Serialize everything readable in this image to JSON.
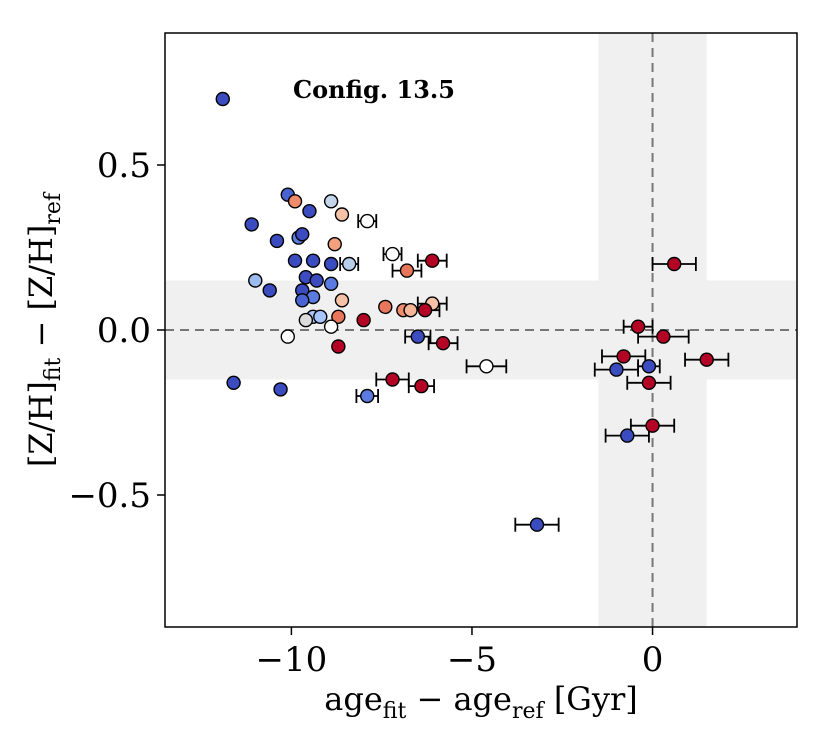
{
  "chart_data": {
    "type": "scatter",
    "annotation": "Config. 13.5",
    "xlabel": {
      "main": "age",
      "sub_fit": "fit",
      "minus": " − age",
      "sub_ref": "ref",
      "unit": " [Gyr]"
    },
    "ylabel": {
      "main": "[Z/H]",
      "sub_fit": "fit",
      "minus": " − [Z/H]",
      "sub_ref": "ref"
    },
    "xlim": [
      -13.5,
      4.0
    ],
    "ylim": [
      -0.9,
      0.9
    ],
    "xticks": [
      {
        "v": -10,
        "label": "−10"
      },
      {
        "v": -5,
        "label": "−5"
      },
      {
        "v": 0,
        "label": "0"
      }
    ],
    "yticks": [
      {
        "v": 0.5,
        "label": "0.5"
      },
      {
        "v": 0.0,
        "label": "0.0"
      },
      {
        "v": -0.5,
        "label": "−0.5"
      }
    ],
    "reference_lines": {
      "x": 0,
      "y": 0
    },
    "shaded_bands": {
      "x": [
        -1.5,
        1.5
      ],
      "y": [
        -0.15,
        0.15
      ]
    },
    "grid": false,
    "colors": {
      "band": "#f0f0f0",
      "refline": "#777777",
      "edge": "#000000"
    },
    "points": [
      {
        "x": -11.9,
        "y": 0.7,
        "c": "#3b4cc0"
      },
      {
        "x": -11.1,
        "y": 0.32,
        "c": "#3b4cc0"
      },
      {
        "x": -10.1,
        "y": 0.41,
        "c": "#4a63d3"
      },
      {
        "x": -9.9,
        "y": 0.39,
        "c": "#f08b6b"
      },
      {
        "x": -10.4,
        "y": 0.27,
        "c": "#3b4cc0"
      },
      {
        "x": -9.5,
        "y": 0.36,
        "c": "#3b4cc0"
      },
      {
        "x": -8.9,
        "y": 0.39,
        "c": "#c5d5ec"
      },
      {
        "x": -8.6,
        "y": 0.35,
        "c": "#f5c2a8"
      },
      {
        "x": -7.9,
        "y": 0.33,
        "c": "#ffffff"
      },
      {
        "x": -9.8,
        "y": 0.28,
        "c": "#5b7be0"
      },
      {
        "x": -9.7,
        "y": 0.29,
        "c": "#3b4cc0"
      },
      {
        "x": -8.8,
        "y": 0.26,
        "c": "#f2a07e"
      },
      {
        "x": -7.2,
        "y": 0.23,
        "c": "#ffffff"
      },
      {
        "x": -6.1,
        "y": 0.21,
        "c": "#b40426"
      },
      {
        "x": -9.9,
        "y": 0.21,
        "c": "#3b4cc0"
      },
      {
        "x": -9.4,
        "y": 0.21,
        "c": "#3b4cc0"
      },
      {
        "x": -8.9,
        "y": 0.2,
        "c": "#3b4cc0"
      },
      {
        "x": -8.4,
        "y": 0.2,
        "c": "#b8cde9"
      },
      {
        "x": -6.8,
        "y": 0.18,
        "c": "#e8765b"
      },
      {
        "x": -11.0,
        "y": 0.15,
        "c": "#9cbcf0"
      },
      {
        "x": -9.6,
        "y": 0.16,
        "c": "#3b4cc0"
      },
      {
        "x": -9.3,
        "y": 0.15,
        "c": "#3b4cc0"
      },
      {
        "x": -8.9,
        "y": 0.14,
        "c": "#5b7be0"
      },
      {
        "x": -10.6,
        "y": 0.12,
        "c": "#3b4cc0"
      },
      {
        "x": -9.7,
        "y": 0.12,
        "c": "#3b4cc0"
      },
      {
        "x": -9.4,
        "y": 0.1,
        "c": "#5b7be0"
      },
      {
        "x": -8.6,
        "y": 0.09,
        "c": "#f5c2a8"
      },
      {
        "x": -9.7,
        "y": 0.09,
        "c": "#4a63d3"
      },
      {
        "x": -7.4,
        "y": 0.07,
        "c": "#e8765b"
      },
      {
        "x": -6.9,
        "y": 0.06,
        "c": "#f08b6b"
      },
      {
        "x": -6.7,
        "y": 0.06,
        "c": "#f5b596"
      },
      {
        "x": -6.1,
        "y": 0.08,
        "c": "#f5c2a8"
      },
      {
        "x": -6.3,
        "y": 0.06,
        "c": "#b40426"
      },
      {
        "x": -8.7,
        "y": 0.04,
        "c": "#e8765b"
      },
      {
        "x": -8.0,
        "y": 0.03,
        "c": "#b40426"
      },
      {
        "x": -9.4,
        "y": 0.04,
        "c": "#a7c5fe"
      },
      {
        "x": -9.2,
        "y": 0.04,
        "c": "#a7c5fe"
      },
      {
        "x": -9.6,
        "y": 0.03,
        "c": "#dcdcdc"
      },
      {
        "x": -8.9,
        "y": 0.01,
        "c": "#ffffff"
      },
      {
        "x": -10.1,
        "y": -0.02,
        "c": "#ffffff"
      },
      {
        "x": -6.5,
        "y": -0.02,
        "c": "#3b4cc0"
      },
      {
        "x": -5.8,
        "y": -0.04,
        "c": "#b40426"
      },
      {
        "x": -8.7,
        "y": -0.05,
        "c": "#b40426"
      },
      {
        "x": -4.6,
        "y": -0.11,
        "c": "#ffffff"
      },
      {
        "x": -7.2,
        "y": -0.15,
        "c": "#b40426"
      },
      {
        "x": -6.4,
        "y": -0.17,
        "c": "#b40426"
      },
      {
        "x": -11.6,
        "y": -0.16,
        "c": "#3b4cc0"
      },
      {
        "x": -10.3,
        "y": -0.18,
        "c": "#3b4cc0"
      },
      {
        "x": -7.9,
        "y": -0.2,
        "c": "#5b7be0"
      },
      {
        "x": -3.2,
        "y": -0.59,
        "c": "#3b4cc0"
      },
      {
        "x": 0.6,
        "y": 0.2,
        "c": "#b40426"
      },
      {
        "x": -0.4,
        "y": 0.01,
        "c": "#b40426"
      },
      {
        "x": 0.3,
        "y": -0.02,
        "c": "#b40426"
      },
      {
        "x": 1.5,
        "y": -0.09,
        "c": "#b40426"
      },
      {
        "x": -0.8,
        "y": -0.08,
        "c": "#b40426"
      },
      {
        "x": -1.0,
        "y": -0.12,
        "c": "#3b4cc0"
      },
      {
        "x": -0.1,
        "y": -0.11,
        "c": "#3b4cc0"
      },
      {
        "x": -0.1,
        "y": -0.16,
        "c": "#b40426"
      },
      {
        "x": 0.0,
        "y": -0.29,
        "c": "#b40426"
      },
      {
        "x": -0.7,
        "y": -0.32,
        "c": "#3b4cc0"
      }
    ],
    "errorbars": [
      {
        "x": -7.9,
        "y": 0.33,
        "xerr": 0.25
      },
      {
        "x": -7.2,
        "y": 0.23,
        "xerr": 0.25
      },
      {
        "x": -6.1,
        "y": 0.21,
        "xerr": 0.4
      },
      {
        "x": -8.4,
        "y": 0.2,
        "xerr": 0.25
      },
      {
        "x": -6.8,
        "y": 0.18,
        "xerr": 0.4
      },
      {
        "x": -6.1,
        "y": 0.08,
        "xerr": 0.4
      },
      {
        "x": -6.3,
        "y": 0.06,
        "xerr": 0.4
      },
      {
        "x": -5.8,
        "y": -0.04,
        "xerr": 0.4
      },
      {
        "x": -6.5,
        "y": -0.02,
        "xerr": 0.35
      },
      {
        "x": -4.6,
        "y": -0.11,
        "xerr": 0.55
      },
      {
        "x": -7.2,
        "y": -0.15,
        "xerr": 0.45
      },
      {
        "x": -6.4,
        "y": -0.17,
        "xerr": 0.35
      },
      {
        "x": -7.9,
        "y": -0.2,
        "xerr": 0.3
      },
      {
        "x": -3.2,
        "y": -0.59,
        "xerr": 0.6
      },
      {
        "x": 0.6,
        "y": 0.2,
        "xerr": 0.6
      },
      {
        "x": -0.4,
        "y": 0.01,
        "xerr": 0.4
      },
      {
        "x": 0.3,
        "y": -0.02,
        "xerr": 0.7
      },
      {
        "x": 1.5,
        "y": -0.09,
        "xerr": 0.6
      },
      {
        "x": -0.8,
        "y": -0.08,
        "xerr": 0.6
      },
      {
        "x": -1.0,
        "y": -0.12,
        "xerr": 0.6
      },
      {
        "x": -0.1,
        "y": -0.11,
        "xerr": 0.3
      },
      {
        "x": -0.1,
        "y": -0.16,
        "xerr": 0.6
      },
      {
        "x": 0.0,
        "y": -0.29,
        "xerr": 0.6
      },
      {
        "x": -0.7,
        "y": -0.32,
        "xerr": 0.6
      }
    ]
  }
}
